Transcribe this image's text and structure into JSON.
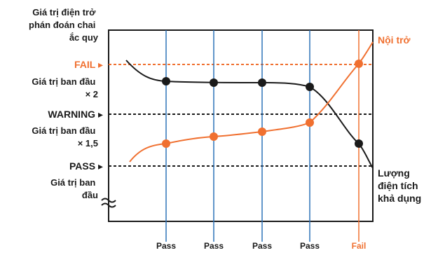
{
  "y_axis_title": [
    "Giá trị điện trở",
    "phán đoán chai",
    "ắc quy"
  ],
  "thresholds": [
    {
      "label": "FAIL ▸",
      "style": "fail"
    },
    {
      "label": "WARNING ▸",
      "style": "normal"
    },
    {
      "label": "PASS ▸",
      "style": "normal"
    }
  ],
  "level_descriptions": [
    [
      "Giá trị ban đầu",
      "× 2"
    ],
    [
      "Giá trị ban đầu",
      "× 1,5"
    ],
    [
      "Giá trị ban",
      "đầu"
    ]
  ],
  "curves": {
    "resistance_label": [
      "Nội trở"
    ],
    "capacity_label": [
      "Lượng",
      "điện tích",
      "khả dụng"
    ]
  },
  "inspections": [
    {
      "label": "Pass",
      "result": "pass"
    },
    {
      "label": "Pass",
      "result": "pass"
    },
    {
      "label": "Pass",
      "result": "pass"
    },
    {
      "label": "Pass",
      "result": "pass"
    },
    {
      "label": "Fail",
      "result": "fail"
    }
  ],
  "colors": {
    "orange": "#f07030",
    "blue": "#2f73b8",
    "black": "#1a1a1a"
  }
}
